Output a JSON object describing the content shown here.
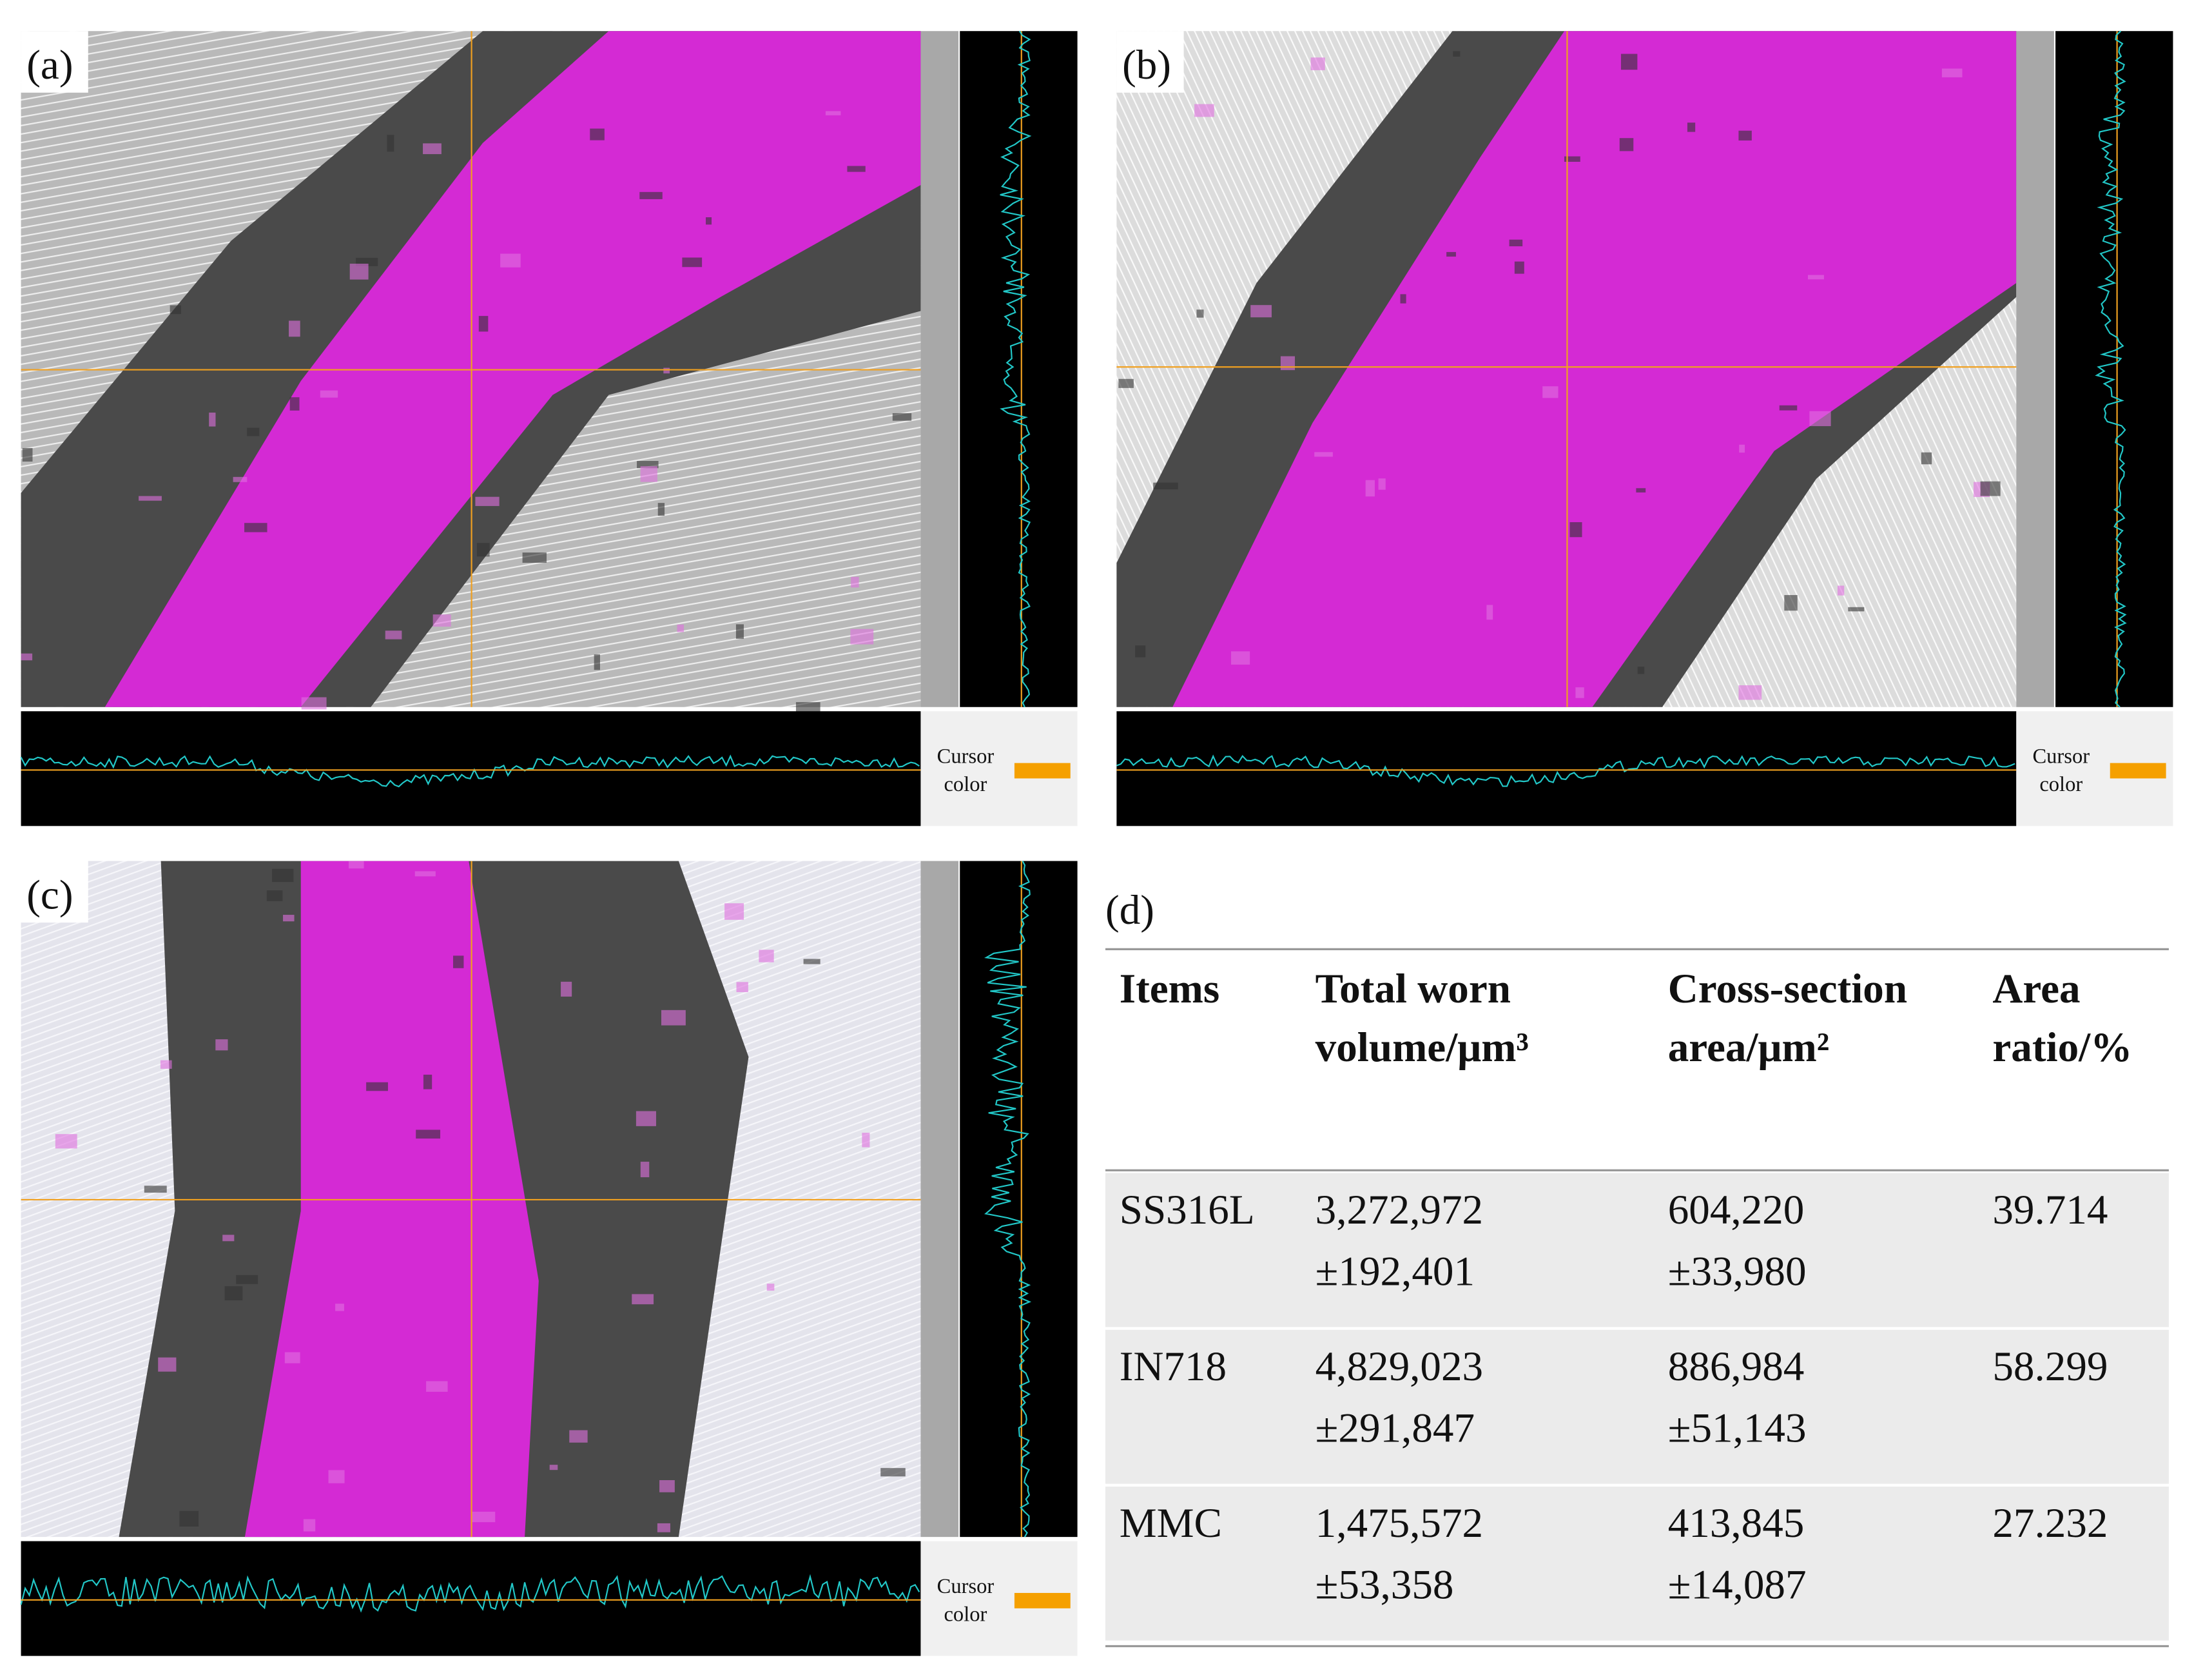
{
  "panels": [
    {
      "label": "(a)",
      "cursor_label": [
        "Cursor",
        "color"
      ]
    },
    {
      "label": "(b)",
      "cursor_label": [
        "Cursor",
        "color"
      ]
    },
    {
      "label": "(c)",
      "cursor_label": [
        "Cursor",
        "color"
      ]
    }
  ],
  "table": {
    "label": "(d)",
    "header": [
      [
        "Items"
      ],
      [
        "Total worn",
        "volume/μm³"
      ],
      [
        "Cross-section",
        "area/μm²"
      ],
      [
        "Area",
        "ratio/%"
      ]
    ],
    "rows": [
      [
        [
          "SS316L"
        ],
        [
          "3,272,972",
          "±192,401"
        ],
        [
          "604,220",
          "±33,980"
        ],
        [
          "39.714"
        ]
      ],
      [
        [
          "IN718"
        ],
        [
          "4,829,023",
          "±291,847"
        ],
        [
          "886,984",
          "±51,143"
        ],
        [
          "58.299"
        ]
      ],
      [
        [
          "MMC"
        ],
        [
          "1,475,572",
          "±53,358"
        ],
        [
          "413,845",
          "±14,087"
        ],
        [
          "27.232"
        ]
      ]
    ]
  }
}
